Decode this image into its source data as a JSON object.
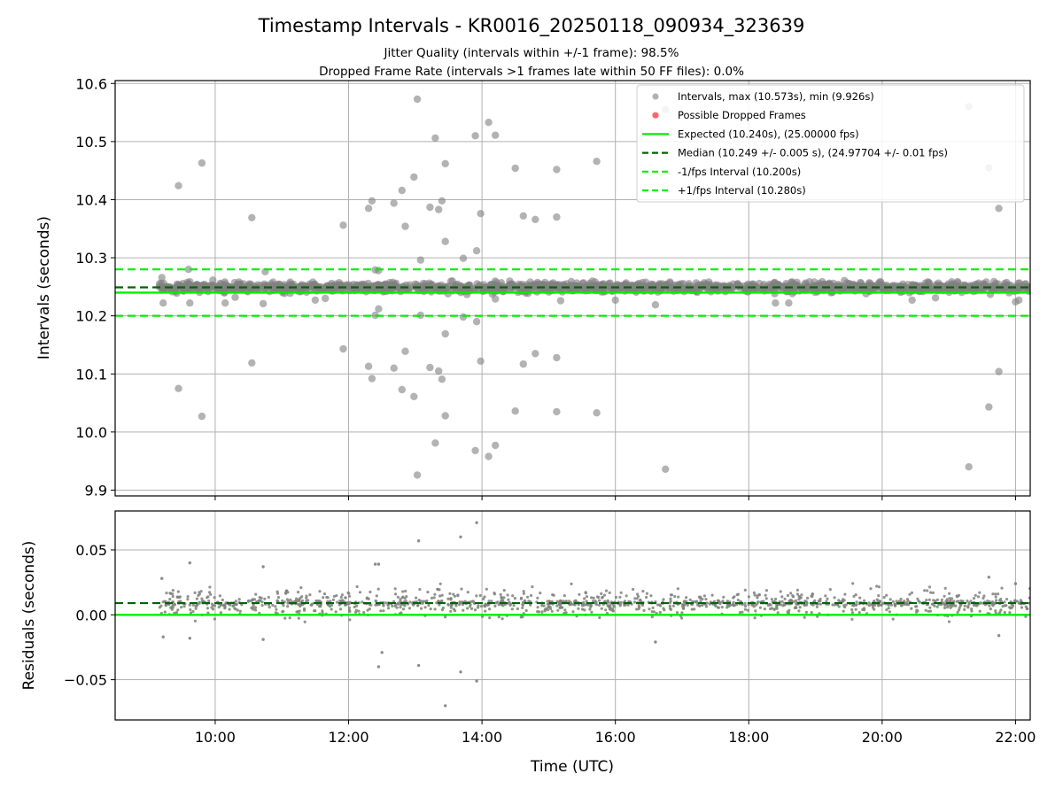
{
  "chart_data": {
    "title": "Timestamp Intervals - KR0016_20250118_090934_323639",
    "subtitle_lines": [
      "Jitter Quality (intervals within +/-1 frame): 98.5%",
      "Dropped Frame Rate (intervals >1 frames late within 50 FF files): 0.0%"
    ],
    "xlabel": "Time (UTC)",
    "x_tick_labels": [
      "10:00",
      "12:00",
      "14:00",
      "16:00",
      "18:00",
      "20:00",
      "22:00"
    ],
    "xlim_hours": [
      8.5,
      22.22
    ],
    "top_panel": {
      "type": "scatter",
      "ylabel": "Intervals (seconds)",
      "ylim": [
        9.89,
        10.605
      ],
      "y_ticks": [
        9.9,
        10.0,
        10.1,
        10.2,
        10.3,
        10.4,
        10.5,
        10.6
      ],
      "y_tick_labels": [
        "9.9",
        "10.0",
        "10.1",
        "10.2",
        "10.3",
        "10.4",
        "10.5",
        "10.6"
      ],
      "grid": true,
      "legend_position": "top-right",
      "legend": [
        {
          "label": "Intervals, max (10.573s), min (9.926s)",
          "kind": "marker",
          "color": "#808080"
        },
        {
          "label": "Possible Dropped Frames",
          "kind": "marker",
          "color": "#ff0000"
        },
        {
          "label": "Expected (10.240s), (25.00000 fps)",
          "kind": "solid",
          "color": "#00ee00"
        },
        {
          "label": "Median (10.249 +/- 0.005 s), (24.97704 +/- 0.01 fps)",
          "kind": "dashed",
          "color": "#006400"
        },
        {
          "label": "-1/fps Interval (10.200s)",
          "kind": "dashed",
          "color": "#00ee00"
        },
        {
          "label": "+1/fps Interval (10.280s)",
          "kind": "dashed",
          "color": "#00ee00"
        }
      ],
      "reference_lines": {
        "expected": 10.24,
        "median": 10.249,
        "minus_1fps": 10.2,
        "plus_1fps": 10.28
      },
      "bulk_band": {
        "x_start_hours": 9.16,
        "x_end_hours": 22.22,
        "center": 10.249,
        "spread": 0.008
      },
      "outliers": [
        [
          9.2,
          10.266
        ],
        [
          9.22,
          10.222
        ],
        [
          9.45,
          10.424
        ],
        [
          9.45,
          10.075
        ],
        [
          9.6,
          10.28
        ],
        [
          9.62,
          10.222
        ],
        [
          9.8,
          10.463
        ],
        [
          9.8,
          10.027
        ],
        [
          10.15,
          10.222
        ],
        [
          10.3,
          10.232
        ],
        [
          10.55,
          10.369
        ],
        [
          10.55,
          10.119
        ],
        [
          10.72,
          10.221
        ],
        [
          10.75,
          10.276
        ],
        [
          11.5,
          10.227
        ],
        [
          11.65,
          10.23
        ],
        [
          11.92,
          10.356
        ],
        [
          11.92,
          10.143
        ],
        [
          12.3,
          10.385
        ],
        [
          12.3,
          10.113
        ],
        [
          12.35,
          10.398
        ],
        [
          12.35,
          10.092
        ],
        [
          12.4,
          10.279
        ],
        [
          12.4,
          10.201
        ],
        [
          12.45,
          10.278
        ],
        [
          12.45,
          10.212
        ],
        [
          12.68,
          10.394
        ],
        [
          12.68,
          10.11
        ],
        [
          12.8,
          10.416
        ],
        [
          12.8,
          10.073
        ],
        [
          12.85,
          10.354
        ],
        [
          12.85,
          10.139
        ],
        [
          12.98,
          10.439
        ],
        [
          12.98,
          10.061
        ],
        [
          13.03,
          10.573
        ],
        [
          13.03,
          9.926
        ],
        [
          13.08,
          10.296
        ],
        [
          13.08,
          10.201
        ],
        [
          13.22,
          10.387
        ],
        [
          13.22,
          10.111
        ],
        [
          13.3,
          10.506
        ],
        [
          13.3,
          9.981
        ],
        [
          13.35,
          10.383
        ],
        [
          13.35,
          10.105
        ],
        [
          13.4,
          10.398
        ],
        [
          13.4,
          10.091
        ],
        [
          13.45,
          10.462
        ],
        [
          13.45,
          10.028
        ],
        [
          13.45,
          10.328
        ],
        [
          13.45,
          10.169
        ],
        [
          13.72,
          10.299
        ],
        [
          13.72,
          10.198
        ],
        [
          13.9,
          10.51
        ],
        [
          13.9,
          9.968
        ],
        [
          13.92,
          10.312
        ],
        [
          13.92,
          10.19
        ],
        [
          13.98,
          10.376
        ],
        [
          13.98,
          10.122
        ],
        [
          14.1,
          10.533
        ],
        [
          14.1,
          9.958
        ],
        [
          14.2,
          10.511
        ],
        [
          14.2,
          9.977
        ],
        [
          14.2,
          10.229
        ],
        [
          14.5,
          10.454
        ],
        [
          14.5,
          10.036
        ],
        [
          14.62,
          10.372
        ],
        [
          14.62,
          10.117
        ],
        [
          14.8,
          10.366
        ],
        [
          14.8,
          10.135
        ],
        [
          15.12,
          10.452
        ],
        [
          15.12,
          10.035
        ],
        [
          15.12,
          10.37
        ],
        [
          15.12,
          10.128
        ],
        [
          15.18,
          10.226
        ],
        [
          15.72,
          10.466
        ],
        [
          15.72,
          10.033
        ],
        [
          16.0,
          10.227
        ],
        [
          16.6,
          10.219
        ],
        [
          16.75,
          10.555
        ],
        [
          16.75,
          9.936
        ],
        [
          18.4,
          10.222
        ],
        [
          18.6,
          10.222
        ],
        [
          20.45,
          10.227
        ],
        [
          20.8,
          10.231
        ],
        [
          21.3,
          10.56
        ],
        [
          21.3,
          9.94
        ],
        [
          21.6,
          10.455
        ],
        [
          21.6,
          10.043
        ],
        [
          21.75,
          10.385
        ],
        [
          21.75,
          10.104
        ],
        [
          22.0,
          10.224
        ],
        [
          22.05,
          10.227
        ]
      ]
    },
    "bottom_panel": {
      "type": "scatter",
      "ylabel": "Residuals (seconds)",
      "ylim": [
        -0.081,
        0.08
      ],
      "y_ticks": [
        -0.05,
        0.0,
        0.05
      ],
      "y_tick_labels": [
        "−0.05",
        "0.00",
        "0.05"
      ],
      "grid": true,
      "reference_lines": {
        "zero": 0.0,
        "median_offset": 0.009
      },
      "bulk_band": {
        "x_start_hours": 9.16,
        "x_end_hours": 22.22,
        "center": 0.009,
        "spread": 0.009
      },
      "outliers": [
        [
          9.2,
          0.028
        ],
        [
          9.22,
          -0.017
        ],
        [
          9.62,
          0.04
        ],
        [
          9.62,
          -0.018
        ],
        [
          10.72,
          0.037
        ],
        [
          10.72,
          -0.019
        ],
        [
          12.4,
          0.039
        ],
        [
          12.45,
          0.039
        ],
        [
          12.45,
          -0.04
        ],
        [
          12.5,
          -0.029
        ],
        [
          13.05,
          0.057
        ],
        [
          13.05,
          -0.039
        ],
        [
          13.68,
          0.06
        ],
        [
          13.68,
          -0.044
        ],
        [
          13.92,
          0.071
        ],
        [
          13.92,
          -0.051
        ],
        [
          13.45,
          -0.07
        ],
        [
          16.6,
          -0.021
        ],
        [
          21.6,
          0.029
        ],
        [
          21.75,
          -0.016
        ],
        [
          22.0,
          0.024
        ]
      ]
    }
  }
}
